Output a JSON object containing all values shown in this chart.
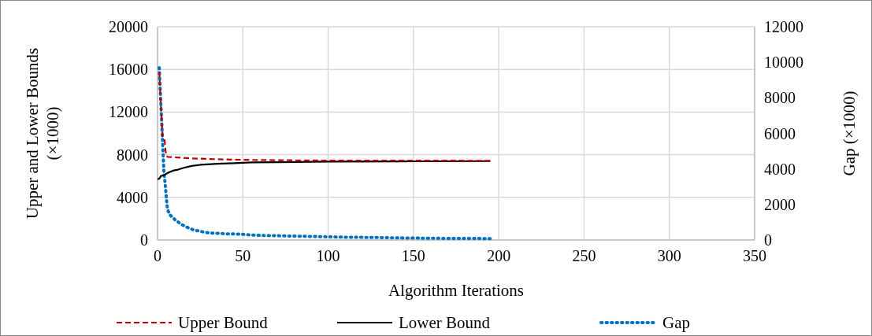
{
  "chart_data": {
    "type": "line",
    "xlabel": "Algorithm Iterations",
    "ylabel": "Upper and Lower Bounds (×1000)",
    "y2label": "Gap (×1000)",
    "xlim": [
      0,
      350
    ],
    "xticks": [
      0,
      50,
      100,
      150,
      200,
      250,
      300,
      350
    ],
    "ylim": [
      0,
      20000
    ],
    "yticks": [
      0,
      4000,
      8000,
      12000,
      16000,
      20000
    ],
    "y2lim": [
      0,
      12000
    ],
    "y2ticks": [
      0,
      2000,
      4000,
      6000,
      8000,
      10000,
      12000
    ],
    "grid": true,
    "legend": "bottom",
    "series": [
      {
        "name": "Upper Bound",
        "color": "#c00000",
        "line_style": "dashed",
        "x": [
          1,
          2,
          3,
          4,
          5,
          6,
          10,
          20,
          40,
          60,
          100,
          150,
          195
        ],
        "values": [
          15800,
          12500,
          9700,
          9600,
          7900,
          7800,
          7750,
          7650,
          7550,
          7500,
          7450,
          7450,
          7430
        ]
      },
      {
        "name": "Lower Bound",
        "color": "#000000",
        "line_style": "solid",
        "x": [
          0,
          1,
          2,
          4,
          6,
          9,
          12,
          15,
          20,
          25,
          35,
          45,
          55,
          70,
          100,
          150,
          195
        ],
        "values": [
          5700,
          5750,
          6000,
          6100,
          6300,
          6500,
          6600,
          6750,
          6950,
          7050,
          7150,
          7200,
          7280,
          7300,
          7350,
          7380,
          7400
        ]
      },
      {
        "name": "Gap",
        "color": "#0070c0",
        "line_style": "dotted",
        "axis": "y2",
        "x": [
          1,
          1.2,
          1.4,
          1.6,
          1.8,
          2,
          2.2,
          2.4,
          2.6,
          2.8,
          3,
          3.2,
          3.4,
          3.6,
          3.8,
          4.2,
          4.6,
          5,
          5.4,
          5.8,
          7.2,
          10.6,
          13.8,
          17.5,
          20.8,
          25.4,
          30,
          35,
          40,
          45,
          50,
          55,
          60,
          70,
          80,
          90,
          100,
          110,
          120,
          130,
          140,
          150,
          160,
          170,
          180,
          195
        ],
        "values": [
          9700,
          9250,
          8800,
          8400,
          7970,
          7570,
          7130,
          6730,
          6290,
          5850,
          5400,
          4960,
          4560,
          4120,
          3720,
          3410,
          3010,
          2570,
          2130,
          1730,
          1420,
          1110,
          890,
          710,
          580,
          480,
          400,
          380,
          350,
          340,
          320,
          280,
          260,
          240,
          220,
          200,
          180,
          160,
          150,
          140,
          120,
          110,
          100,
          90,
          90,
          80
        ]
      }
    ]
  }
}
